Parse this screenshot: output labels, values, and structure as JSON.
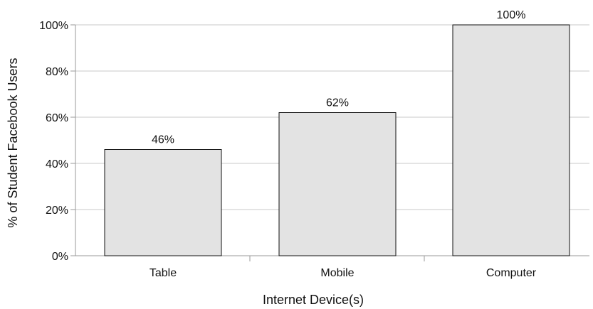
{
  "chart_data": {
    "type": "bar",
    "categories": [
      "Table",
      "Mobile",
      "Computer"
    ],
    "values": [
      46,
      62,
      100
    ],
    "data_labels": [
      "46%",
      "62%",
      "100%"
    ],
    "xlabel": "Internet Device(s)",
    "ylabel": "% of Student Facebook Users",
    "ylim": [
      0,
      100
    ],
    "yticks": [
      0,
      20,
      40,
      60,
      80,
      100
    ],
    "ytick_labels": [
      "0%",
      "20%",
      "40%",
      "60%",
      "80%",
      "100%"
    ],
    "grid": "horizontal",
    "legend": "none",
    "colors": {
      "bar_fill": "#e3e3e3",
      "bar_stroke": "#111111",
      "grid": "#c8c8c8",
      "axis": "#9a9a9a"
    }
  }
}
